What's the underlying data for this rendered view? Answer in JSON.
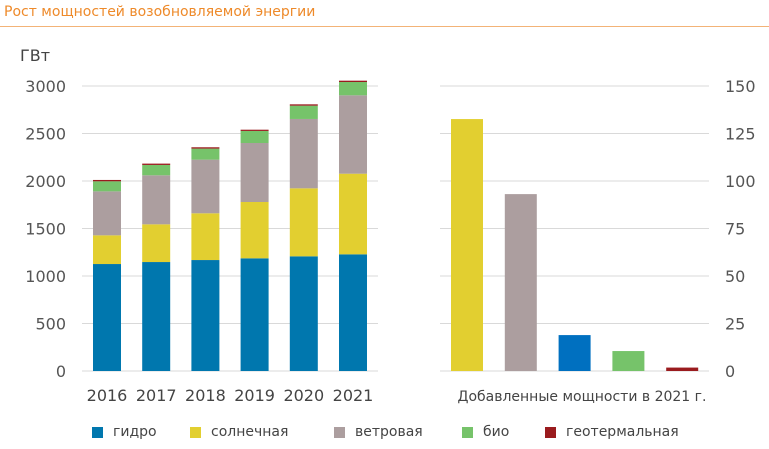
{
  "title": "Рост мощностей возобновляемой энергии",
  "colors": {
    "hydro": "#0077AE",
    "solar": "#E2CF30",
    "wind": "#AC9E9F",
    "bio": "#76C36A",
    "geo": "#9A1B1E",
    "hydro_added": "#0070C0"
  },
  "legend": [
    {
      "key": "hydro",
      "label": "гидро"
    },
    {
      "key": "solar",
      "label": "солнечная"
    },
    {
      "key": "wind",
      "label": "ветровая"
    },
    {
      "key": "bio",
      "label": "био"
    },
    {
      "key": "geo",
      "label": "геотермальная"
    }
  ],
  "chart_data": [
    {
      "type": "bar",
      "stacked": true,
      "ylabel": "ГВт",
      "ylim": [
        0,
        3000
      ],
      "yticks": [
        "0",
        "500",
        "1000",
        "1500",
        "2000",
        "2500",
        "3000"
      ],
      "grid": true,
      "categories": [
        "2016",
        "2017",
        "2018",
        "2019",
        "2020",
        "2021"
      ],
      "series": [
        {
          "name": "гидро",
          "key": "hydro",
          "values": [
            1126,
            1147,
            1168,
            1186,
            1207,
            1228
          ]
        },
        {
          "name": "солнечная",
          "key": "solar",
          "values": [
            302,
            397,
            492,
            593,
            716,
            849
          ]
        },
        {
          "name": "ветровая",
          "key": "wind",
          "values": [
            463,
            516,
            565,
            621,
            730,
            825
          ]
        },
        {
          "name": "био",
          "key": "bio",
          "values": [
            106,
            109,
            116,
            127,
            140,
            140
          ]
        },
        {
          "name": "геотермальная",
          "key": "geo",
          "values": [
            14,
            14,
            14,
            13,
            14,
            14
          ]
        }
      ]
    },
    {
      "type": "bar",
      "xlabel": "Добавленные мощности в 2021 г.",
      "ylim": [
        0,
        150
      ],
      "yticks": [
        "0",
        "25",
        "50",
        "75",
        "100",
        "125",
        "150"
      ],
      "grid": true,
      "axis_side": "right",
      "categories": [
        "солнечная",
        "ветровая",
        "гидро",
        "био",
        "геотермальная"
      ],
      "keys": [
        "solar",
        "wind",
        "hydro_added",
        "bio",
        "geo"
      ],
      "values": [
        132.6,
        93.1,
        18.9,
        10.5,
        1.8
      ]
    }
  ]
}
